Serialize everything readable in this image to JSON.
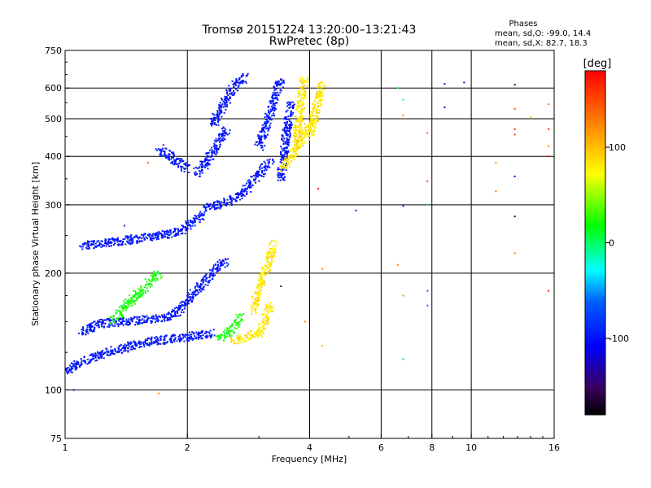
{
  "chart_data": {
    "type": "scatter",
    "title": "Tromsø 20151224 13:20:00–13:21:43",
    "subtitle": "RwPretec (8p)",
    "xlabel": "Frequency [MHz]",
    "ylabel": "Stationary phase Virtual Height [km]",
    "x_scale": "log",
    "y_scale": "log",
    "xlim": [
      1,
      16
    ],
    "ylim": [
      75,
      750
    ],
    "x_ticks": [
      1,
      2,
      4,
      6,
      8,
      10,
      16
    ],
    "x_tick_labels": [
      "1",
      "2",
      "4",
      "6",
      "8",
      "10",
      "16"
    ],
    "y_ticks": [
      75,
      100,
      200,
      300,
      400,
      500,
      600,
      750
    ],
    "y_tick_labels": [
      "75",
      "100",
      "200",
      "300",
      "400",
      "500",
      "600",
      "750"
    ],
    "grid_x": [
      2,
      4,
      6,
      8,
      10
    ],
    "grid_y": [
      100,
      200,
      300,
      400,
      500,
      600
    ],
    "phase_stats": {
      "heading": "Phases",
      "line_o": "mean, sd,O: -99.0, 14.4",
      "line_x": "mean, sd,X:  82.7, 18.3"
    },
    "colorbar": {
      "label": "[deg]",
      "min": -180,
      "max": 180,
      "ticks": [
        100,
        0,
        -100
      ],
      "tick_labels": [
        "100",
        "0",
        "-100"
      ]
    },
    "series": [
      {
        "mode": "O",
        "phase": -99,
        "traces": [
          {
            "x": [
              1.0,
              1.1,
              1.2,
              1.3,
              1.4,
              1.5,
              1.6,
              1.7,
              1.8,
              1.9,
              2.0,
              2.1,
              2.2,
              2.3
            ],
            "y": [
              112,
              118,
              122,
              126,
              128,
              131,
              133,
              134,
              135,
              136,
              137,
              138,
              139,
              140
            ]
          },
          {
            "x": [
              1.1,
              1.2,
              1.4,
              1.6,
              1.8,
              1.9,
              2.0,
              2.1,
              2.2,
              2.3,
              2.4,
              2.5
            ],
            "y": [
              140,
              148,
              150,
              152,
              155,
              160,
              170,
              180,
              190,
              200,
              210,
              215
            ]
          },
          {
            "x": [
              1.1,
              1.3,
              1.5,
              1.7,
              1.9,
              2.0,
              2.1,
              2.2
            ],
            "y": [
              235,
              240,
              245,
              250,
              255,
              265,
              275,
              285
            ]
          },
          {
            "x": [
              2.2,
              2.4,
              2.6,
              2.7,
              2.8,
              2.9,
              3.0,
              3.1,
              3.2
            ],
            "y": [
              295,
              300,
              310,
              320,
              330,
              345,
              360,
              375,
              390
            ]
          },
          {
            "x": [
              2.1,
              2.2,
              2.3,
              2.4,
              2.5
            ],
            "y": [
              360,
              380,
              410,
              440,
              470
            ]
          },
          {
            "x": [
              2.3,
              2.4,
              2.5,
              2.6,
              2.7,
              2.8
            ],
            "y": [
              480,
              520,
              560,
              600,
              630,
              640
            ]
          },
          {
            "x": [
              3.0,
              3.1,
              3.2,
              3.3,
              3.4
            ],
            "y": [
              420,
              470,
              520,
              580,
              630
            ]
          },
          {
            "x": [
              3.4,
              3.5,
              3.6
            ],
            "y": [
              350,
              450,
              550
            ]
          },
          {
            "x": [
              1.7,
              2.0
            ],
            "y": [
              420,
              370
            ]
          }
        ]
      },
      {
        "mode": "X",
        "phase": 83,
        "traces": [
          {
            "x": [
              2.6,
              2.8,
              3.0,
              3.1,
              3.2
            ],
            "y": [
              133,
              137,
              140,
              150,
              165
            ]
          },
          {
            "x": [
              2.9,
              3.0,
              3.1,
              3.2,
              3.25
            ],
            "y": [
              160,
              180,
              200,
              220,
              240
            ]
          },
          {
            "x": [
              3.4,
              3.5,
              3.6,
              3.7,
              3.8,
              3.9,
              4.0,
              4.1
            ],
            "y": [
              370,
              380,
              400,
              420,
              440,
              460,
              480,
              500
            ]
          },
          {
            "x": [
              3.7,
              3.75,
              3.8,
              3.85,
              3.9
            ],
            "y": [
              420,
              480,
              540,
              600,
              640
            ]
          },
          {
            "x": [
              4.0,
              4.1,
              4.2,
              4.3
            ],
            "y": [
              450,
              500,
              560,
              620
            ]
          }
        ]
      },
      {
        "mode": "transition",
        "phase": 20,
        "traces": [
          {
            "x": [
              1.3,
              1.5,
              1.7
            ],
            "y": [
              150,
              175,
              200
            ]
          },
          {
            "x": [
              2.4,
              2.6,
              2.7
            ],
            "y": [
              135,
              145,
              155
            ]
          }
        ]
      }
    ],
    "sparse_points": [
      {
        "x": 1.05,
        "y": 100,
        "phase": -110
      },
      {
        "x": 1.7,
        "y": 98,
        "phase": 120
      },
      {
        "x": 1.6,
        "y": 385,
        "phase": 140
      },
      {
        "x": 1.4,
        "y": 265,
        "phase": -100
      },
      {
        "x": 5.2,
        "y": 290,
        "phase": -100
      },
      {
        "x": 6.6,
        "y": 600,
        "phase": 20
      },
      {
        "x": 6.8,
        "y": 560,
        "phase": 10
      },
      {
        "x": 6.8,
        "y": 510,
        "phase": 130
      },
      {
        "x": 6.8,
        "y": 298,
        "phase": -100
      },
      {
        "x": 6.6,
        "y": 210,
        "phase": 130
      },
      {
        "x": 6.8,
        "y": 175,
        "phase": 120
      },
      {
        "x": 6.8,
        "y": 120,
        "phase": -40
      },
      {
        "x": 7.8,
        "y": 460,
        "phase": 140
      },
      {
        "x": 7.8,
        "y": 345,
        "phase": 150
      },
      {
        "x": 7.8,
        "y": 300,
        "phase": -40
      },
      {
        "x": 7.8,
        "y": 180,
        "phase": -60
      },
      {
        "x": 7.8,
        "y": 165,
        "phase": -60
      },
      {
        "x": 8.6,
        "y": 615,
        "phase": -110
      },
      {
        "x": 8.6,
        "y": 535,
        "phase": -110
      },
      {
        "x": 9.6,
        "y": 620,
        "phase": -110
      },
      {
        "x": 11.5,
        "y": 385,
        "phase": 120
      },
      {
        "x": 11.5,
        "y": 325,
        "phase": 130
      },
      {
        "x": 12.8,
        "y": 612,
        "phase": -150
      },
      {
        "x": 12.8,
        "y": 530,
        "phase": 140
      },
      {
        "x": 12.8,
        "y": 470,
        "phase": 170
      },
      {
        "x": 12.8,
        "y": 455,
        "phase": 150
      },
      {
        "x": 12.8,
        "y": 355,
        "phase": -110
      },
      {
        "x": 12.8,
        "y": 280,
        "phase": -160
      },
      {
        "x": 12.8,
        "y": 225,
        "phase": 130
      },
      {
        "x": 14.0,
        "y": 505,
        "phase": 50
      },
      {
        "x": 15.5,
        "y": 545,
        "phase": 130
      },
      {
        "x": 15.5,
        "y": 470,
        "phase": 160
      },
      {
        "x": 15.5,
        "y": 425,
        "phase": 130
      },
      {
        "x": 15.5,
        "y": 400,
        "phase": 170
      },
      {
        "x": 15.5,
        "y": 180,
        "phase": 170
      },
      {
        "x": 4.3,
        "y": 205,
        "phase": 130
      },
      {
        "x": 3.9,
        "y": 150,
        "phase": 120
      },
      {
        "x": 4.2,
        "y": 330,
        "phase": 170
      },
      {
        "x": 4.3,
        "y": 130,
        "phase": 100
      },
      {
        "x": 3.4,
        "y": 185,
        "phase": -160
      }
    ]
  }
}
